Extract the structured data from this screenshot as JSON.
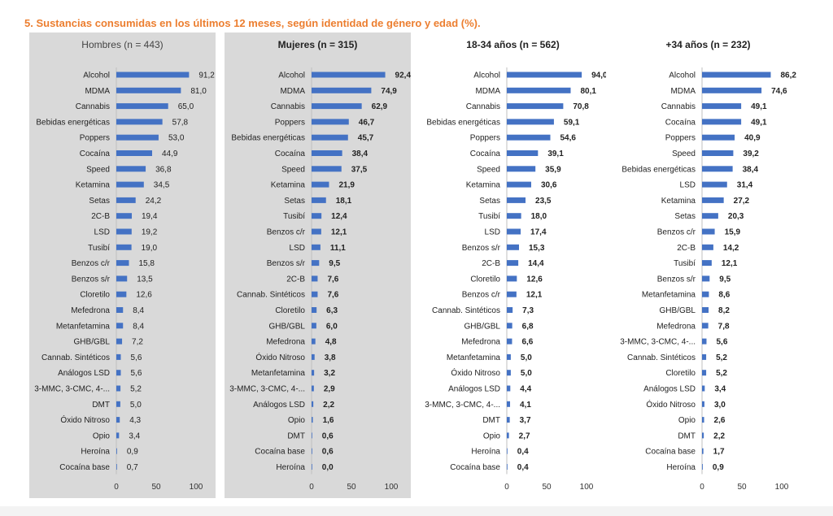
{
  "page": {
    "title": "5. Sustancias consumidas en los últimos 12 meses, según identidad de género y edad (%)."
  },
  "chart_data": [
    {
      "type": "bar",
      "orientation": "horizontal",
      "title": "Hombres (n = 443)",
      "xlim": [
        0,
        100
      ],
      "xticks": [
        "0",
        "50",
        "100"
      ],
      "bar_color": "#4472c4",
      "background": "#d9d9d9",
      "categories": [
        "Alcohol",
        "MDMA",
        "Cannabis",
        "Bebidas energéticas",
        "Poppers",
        "Cocaína",
        "Speed",
        "Ketamina",
        "Setas",
        "2C-B",
        "LSD",
        "Tusibí",
        "Benzos c/r",
        "Benzos s/r",
        "Cloretilo",
        "Mefedrona",
        "Metanfetamina",
        "GHB/GBL",
        "Cannab. Sintéticos",
        "Análogos LSD",
        "3-MMC, 3-CMC, 4-...",
        "DMT",
        "Óxido Nitroso",
        "Opio",
        "Heroína",
        "Cocaína base"
      ],
      "values": [
        91.2,
        81.0,
        65.0,
        57.8,
        53.0,
        44.9,
        36.8,
        34.5,
        24.2,
        19.4,
        19.2,
        19.0,
        15.8,
        13.5,
        12.6,
        8.4,
        8.4,
        7.2,
        5.6,
        5.6,
        5.2,
        5.0,
        4.3,
        3.4,
        0.9,
        0.7
      ],
      "labels": [
        "91,2",
        "81,0",
        "65,0",
        "57,8",
        "53,0",
        "44,9",
        "36,8",
        "34,5",
        "24,2",
        "19,4",
        "19,2",
        "19,0",
        "15,8",
        "13,5",
        "12,6",
        "8,4",
        "8,4",
        "7,2",
        "5,6",
        "5,6",
        "5,2",
        "5,0",
        "4,3",
        "3,4",
        "0,9",
        "0,7"
      ]
    },
    {
      "type": "bar",
      "orientation": "horizontal",
      "title": "Mujeres (n = 315)",
      "xlim": [
        0,
        100
      ],
      "xticks": [
        "0",
        "50",
        "100"
      ],
      "bar_color": "#4472c4",
      "background": "#d9d9d9",
      "categories": [
        "Alcohol",
        "MDMA",
        "Cannabis",
        "Poppers",
        "Bebidas energéticas",
        "Cocaína",
        "Speed",
        "Ketamina",
        "Setas",
        "Tusibí",
        "Benzos c/r",
        "LSD",
        "Benzos s/r",
        "2C-B",
        "Cannab. Sintéticos",
        "Cloretilo",
        "GHB/GBL",
        "Mefedrona",
        "Óxido Nitroso",
        "Metanfetamina",
        "3-MMC, 3-CMC, 4-...",
        "Análogos LSD",
        "Opio",
        "DMT",
        "Cocaína base",
        "Heroína"
      ],
      "values": [
        92.4,
        74.9,
        62.9,
        46.7,
        45.7,
        38.4,
        37.5,
        21.9,
        18.1,
        12.4,
        12.1,
        11.1,
        9.5,
        7.6,
        7.6,
        6.3,
        6.0,
        4.8,
        3.8,
        3.2,
        2.9,
        2.2,
        1.6,
        0.6,
        0.6,
        0.0
      ],
      "labels": [
        "92,4",
        "74,9",
        "62,9",
        "46,7",
        "45,7",
        "38,4",
        "37,5",
        "21,9",
        "18,1",
        "12,4",
        "12,1",
        "11,1",
        "9,5",
        "7,6",
        "7,6",
        "6,3",
        "6,0",
        "4,8",
        "3,8",
        "3,2",
        "2,9",
        "2,2",
        "1,6",
        "0,6",
        "0,6",
        "0,0"
      ]
    },
    {
      "type": "bar",
      "orientation": "horizontal",
      "title": "18-34 años (n = 562)",
      "xlim": [
        0,
        100
      ],
      "xticks": [
        "0",
        "50",
        "100"
      ],
      "bar_color": "#4472c4",
      "background": "#ffffff",
      "categories": [
        "Alcohol",
        "MDMA",
        "Cannabis",
        "Bebidas energéticas",
        "Poppers",
        "Cocaína",
        "Speed",
        "Ketamina",
        "Setas",
        "Tusibí",
        "LSD",
        "Benzos s/r",
        "2C-B",
        "Cloretilo",
        "Benzos c/r",
        "Cannab. Sintéticos",
        "GHB/GBL",
        "Mefedrona",
        "Metanfetamina",
        "Óxido Nitroso",
        "Análogos LSD",
        "3-MMC, 3-CMC, 4-...",
        "DMT",
        "Opio",
        "Heroína",
        "Cocaína base"
      ],
      "values": [
        94.0,
        80.1,
        70.8,
        59.1,
        54.6,
        39.1,
        35.9,
        30.6,
        23.5,
        18.0,
        17.4,
        15.3,
        14.4,
        12.6,
        12.1,
        7.3,
        6.8,
        6.6,
        5.0,
        5.0,
        4.4,
        4.1,
        3.7,
        2.7,
        0.4,
        0.4
      ],
      "labels": [
        "94,0",
        "80,1",
        "70,8",
        "59,1",
        "54,6",
        "39,1",
        "35,9",
        "30,6",
        "23,5",
        "18,0",
        "17,4",
        "15,3",
        "14,4",
        "12,6",
        "12,1",
        "7,3",
        "6,8",
        "6,6",
        "5,0",
        "5,0",
        "4,4",
        "4,1",
        "3,7",
        "2,7",
        "0,4",
        "0,4"
      ]
    },
    {
      "type": "bar",
      "orientation": "horizontal",
      "title": "+34 años (n = 232)",
      "xlim": [
        0,
        100
      ],
      "xticks": [
        "0",
        "50",
        "100"
      ],
      "bar_color": "#4472c4",
      "background": "#ffffff",
      "categories": [
        "Alcohol",
        "MDMA",
        "Cannabis",
        "Cocaína",
        "Poppers",
        "Speed",
        "Bebidas energéticas",
        "LSD",
        "Ketamina",
        "Setas",
        "Benzos c/r",
        "2C-B",
        "Tusibí",
        "Benzos s/r",
        "Metanfetamina",
        "GHB/GBL",
        "Mefedrona",
        "3-MMC, 3-CMC, 4-...",
        "Cannab. Sintéticos",
        "Cloretilo",
        "Análogos LSD",
        "Óxido Nitroso",
        "Opio",
        "DMT",
        "Cocaína base",
        "Heroína"
      ],
      "values": [
        86.2,
        74.6,
        49.1,
        49.1,
        40.9,
        39.2,
        38.4,
        31.4,
        27.2,
        20.3,
        15.9,
        14.2,
        12.1,
        9.5,
        8.6,
        8.2,
        7.8,
        5.6,
        5.2,
        5.2,
        3.4,
        3.0,
        2.6,
        2.2,
        1.7,
        0.9
      ],
      "labels": [
        "86,2",
        "74,6",
        "49,1",
        "49,1",
        "40,9",
        "39,2",
        "38,4",
        "31,4",
        "27,2",
        "20,3",
        "15,9",
        "14,2",
        "12,1",
        "9,5",
        "8,6",
        "8,2",
        "7,8",
        "5,6",
        "5,2",
        "5,2",
        "3,4",
        "3,0",
        "2,6",
        "2,2",
        "1,7",
        "0,9"
      ]
    }
  ]
}
